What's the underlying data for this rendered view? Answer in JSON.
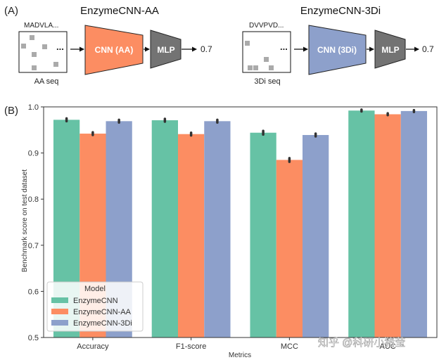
{
  "panel_a": {
    "label": "(A)",
    "models": [
      {
        "title": "EnzymeCNN-AA",
        "seq_head": "MADVLA...",
        "dots": "...",
        "seq_caption": "AA seq",
        "encoder": "CNN (AA)",
        "head": "MLP",
        "output": "0.7",
        "encoder_color": "#fc8d62"
      },
      {
        "title": "EnzymeCNN-3Di",
        "seq_head": "DVVPVD...",
        "dots": "...",
        "seq_caption": "3Di seq",
        "encoder": "CNN (3Di)",
        "head": "MLP",
        "output": "0.7",
        "encoder_color": "#8da0cb"
      }
    ]
  },
  "watermark": "知乎 @科研小猪莹",
  "chart_data": {
    "type": "bar",
    "panel_label": "(B)",
    "categories": [
      "Accuracy",
      "F1-score",
      "MCC",
      "AUC"
    ],
    "series": [
      {
        "name": "EnzymeCNN",
        "color": "#66c2a5",
        "values": [
          0.972,
          0.971,
          0.944,
          0.992
        ],
        "err": [
          0.003,
          0.003,
          0.004,
          0.002
        ]
      },
      {
        "name": "EnzymeCNN-AA",
        "color": "#fc8d62",
        "values": [
          0.942,
          0.941,
          0.885,
          0.984
        ],
        "err": [
          0.003,
          0.003,
          0.004,
          0.002
        ]
      },
      {
        "name": "EnzymeCNN-3Di",
        "color": "#8da0cb",
        "values": [
          0.969,
          0.969,
          0.939,
          0.991
        ],
        "err": [
          0.003,
          0.003,
          0.003,
          0.002
        ]
      }
    ],
    "xlabel": "Metrics",
    "ylabel": "Benchmark score on test dataset",
    "ylim": [
      0.5,
      1.0
    ],
    "yticks": [
      "0.5",
      "0.6",
      "0.7",
      "0.8",
      "0.9",
      "1.0"
    ],
    "legend": {
      "title": "Model",
      "placement": "lower-left"
    },
    "grid": false
  }
}
